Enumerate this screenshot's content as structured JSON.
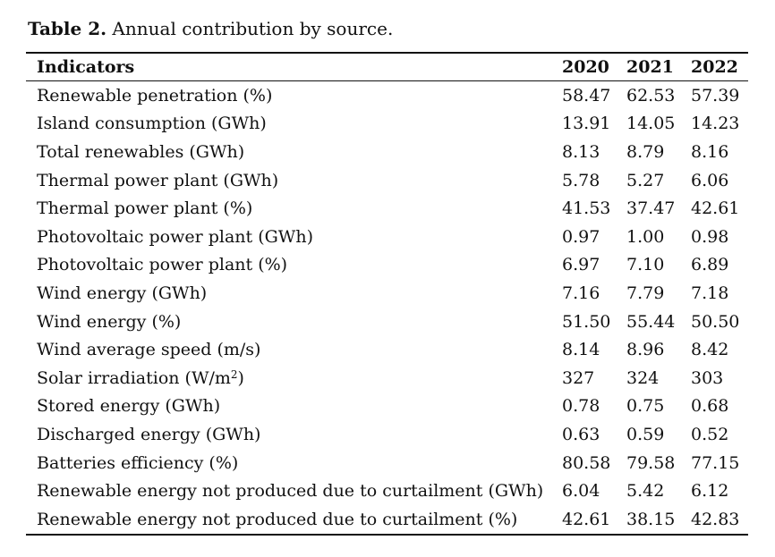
{
  "caption": {
    "lead": "Table 2.",
    "text": " Annual contribution by source."
  },
  "table": {
    "headers": [
      "Indicators",
      "2020",
      "2021",
      "2022"
    ],
    "rows": [
      {
        "label": "Renewable penetration (%)",
        "values": [
          "58.47",
          "62.53",
          "57.39"
        ]
      },
      {
        "label": "Island consumption (GWh)",
        "values": [
          "13.91",
          "14.05",
          "14.23"
        ]
      },
      {
        "label": "Total renewables (GWh)",
        "values": [
          "8.13",
          "8.79",
          "8.16"
        ]
      },
      {
        "label": "Thermal power plant (GWh)",
        "values": [
          "5.78",
          "5.27",
          "6.06"
        ]
      },
      {
        "label": "Thermal power plant (%)",
        "values": [
          "41.53",
          "37.47",
          "42.61"
        ]
      },
      {
        "label": "Photovoltaic power plant (GWh)",
        "values": [
          "0.97",
          "1.00",
          "0.98"
        ]
      },
      {
        "label": "Photovoltaic power plant (%)",
        "values": [
          "6.97",
          "7.10",
          "6.89"
        ]
      },
      {
        "label": "Wind energy (GWh)",
        "values": [
          "7.16",
          "7.79",
          "7.18"
        ]
      },
      {
        "label": "Wind energy (%)",
        "values": [
          "51.50",
          "55.44",
          "50.50"
        ]
      },
      {
        "label": "Wind average speed (m/s)",
        "values": [
          "8.14",
          "8.96",
          "8.42"
        ]
      },
      {
        "label": "Solar irradiation (W/m",
        "label_sup": "2",
        "label_after": ")",
        "values": [
          "327",
          "324",
          "303"
        ]
      },
      {
        "label": "Stored energy (GWh)",
        "values": [
          "0.78",
          "0.75",
          "0.68"
        ]
      },
      {
        "label": "Discharged energy (GWh)",
        "values": [
          "0.63",
          "0.59",
          "0.52"
        ]
      },
      {
        "label": "Batteries efficiency (%)",
        "values": [
          "80.58",
          "79.58",
          "77.15"
        ]
      },
      {
        "label": "Renewable energy not produced due to curtailment (GWh)",
        "values": [
          "6.04",
          "5.42",
          "6.12"
        ]
      },
      {
        "label": "Renewable energy not produced due to curtailment (%)",
        "values": [
          "42.61",
          "38.15",
          "42.83"
        ]
      }
    ]
  }
}
